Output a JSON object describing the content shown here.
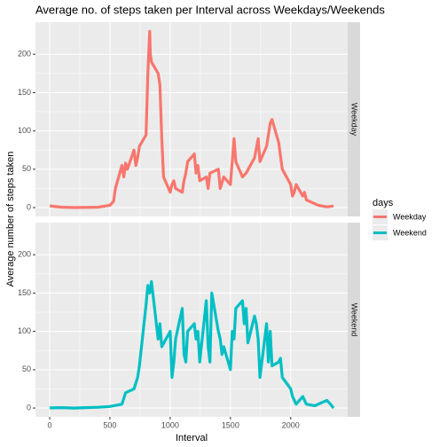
{
  "chart_data": {
    "type": "line",
    "title": "Average no. of steps taken per Interval across Weekdays/Weekends",
    "xlabel": "Interval",
    "ylabel": "Average number of steps taken",
    "legend_title": "days",
    "xlim": [
      -117.75,
      2472.75
    ],
    "xticks": [
      0,
      500,
      1000,
      1500,
      2000
    ],
    "ylim": [
      -11.5,
      241.9
    ],
    "yticks": [
      0,
      50,
      100,
      150,
      200
    ],
    "grid": true,
    "legend": "right",
    "series": [
      {
        "name": "Weekday",
        "color": "#F8766D",
        "x": [
          0,
          100,
          200,
          300,
          400,
          500,
          530,
          545,
          600,
          615,
          630,
          645,
          700,
          715,
          730,
          745,
          800,
          815,
          830,
          835,
          845,
          900,
          915,
          930,
          945,
          1000,
          1015,
          1030,
          1045,
          1100,
          1115,
          1130,
          1145,
          1200,
          1215,
          1230,
          1245,
          1300,
          1315,
          1330,
          1400,
          1415,
          1445,
          1500,
          1530,
          1545,
          1600,
          1630,
          1700,
          1730,
          1745,
          1800,
          1830,
          1845,
          1900,
          1930,
          2000,
          2015,
          2030,
          2045,
          2100,
          2115,
          2130,
          2200,
          2230,
          2300,
          2355
        ],
        "values": [
          2.3,
          0.5,
          0.1,
          0.2,
          0.5,
          3,
          8,
          25,
          55,
          40,
          58,
          50,
          75,
          55,
          65,
          80,
          95,
          175,
          230,
          200,
          190,
          175,
          160,
          90,
          40,
          20,
          30,
          35,
          25,
          20,
          35,
          45,
          60,
          70,
          45,
          55,
          35,
          40,
          25,
          45,
          50,
          25,
          40,
          30,
          90,
          60,
          40,
          45,
          65,
          90,
          60,
          80,
          110,
          115,
          85,
          50,
          30,
          15,
          20,
          30,
          15,
          20,
          10,
          5,
          3,
          1,
          2
        ]
      },
      {
        "name": "Weekend",
        "color": "#00BFC4",
        "x": [
          0,
          100,
          200,
          300,
          400,
          500,
          600,
          630,
          700,
          730,
          745,
          800,
          815,
          830,
          845,
          900,
          915,
          930,
          1000,
          1015,
          1030,
          1045,
          1100,
          1115,
          1130,
          1145,
          1200,
          1215,
          1230,
          1245,
          1300,
          1315,
          1330,
          1345,
          1400,
          1415,
          1430,
          1445,
          1500,
          1515,
          1530,
          1545,
          1600,
          1615,
          1630,
          1645,
          1700,
          1715,
          1730,
          1745,
          1800,
          1815,
          1830,
          1845,
          1900,
          1915,
          1930,
          2000,
          2015,
          2045,
          2100,
          2130,
          2200,
          2300,
          2330,
          2355
        ],
        "values": [
          0.2,
          0.5,
          0,
          0.5,
          1,
          2,
          5,
          20,
          25,
          40,
          55,
          135,
          160,
          150,
          165,
          90,
          110,
          80,
          100,
          40,
          60,
          90,
          130,
          70,
          60,
          100,
          110,
          90,
          100,
          60,
          140,
          80,
          60,
          150,
          100,
          90,
          70,
          80,
          50,
          100,
          90,
          130,
          140,
          110,
          130,
          85,
          120,
          110,
          90,
          40,
          110,
          60,
          100,
          55,
          60,
          65,
          40,
          25,
          15,
          5,
          15,
          5,
          3,
          10,
          5,
          0
        ]
      }
    ]
  }
}
